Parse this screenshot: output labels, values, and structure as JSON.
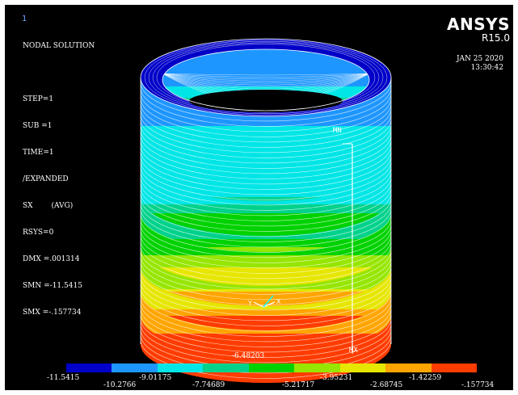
{
  "window_number": "1",
  "plot_info": [
    "NODAL SOLUTION",
    "",
    "STEP=1",
    "SUB =1",
    "TIME=1",
    "/EXPANDED",
    "SX        (AVG)",
    "RSYS=0",
    "DMX =.001314",
    "SMN =-11.5415",
    "SMX =-.157734"
  ],
  "brand": {
    "logo": "ANSYS",
    "release": "R15.0"
  },
  "timestamp": {
    "date": "JAN 25 2020",
    "time": "13:30:42"
  },
  "markers": {
    "min": "MN",
    "max": "MX"
  },
  "triad": {
    "x": "X",
    "y": "Y"
  },
  "legend": {
    "colors": [
      "#0000c8",
      "#1e96ff",
      "#00e6e6",
      "#00d28c",
      "#00d200",
      "#96e600",
      "#e6e600",
      "#ffa500",
      "#ff3c00"
    ],
    "top_labels": [
      "-11.5415",
      "-9.01175",
      "-6.48203",
      "-3.95231",
      "-1.42259"
    ],
    "bottom_labels": [
      "-10.2766",
      "-7.74689",
      "-5.21717",
      "-2.68745",
      "-.157734"
    ]
  }
}
